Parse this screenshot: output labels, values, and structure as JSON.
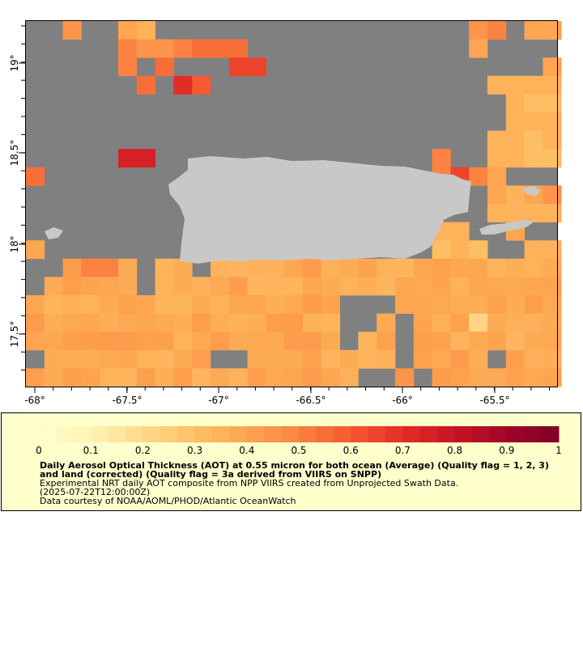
{
  "map": {
    "x_ticks": [
      "-68°",
      "-67.5°",
      "-67°",
      "-66.5°",
      "-66°",
      "-65.5°"
    ],
    "y_ticks": [
      "19°",
      "18.5°",
      "18°",
      "17.5°"
    ],
    "colors": {
      "ocean_no_data": "#808080",
      "land": "#c8c8c8",
      "frame": "#000000"
    },
    "grid_cells": "9 of 10 pixels approx",
    "notes_land": "Puerto Rico and neighbouring islands"
  },
  "legend": {
    "ticks": [
      "0",
      "0.1",
      "0.2",
      "0.3",
      "0.4",
      "0.5",
      "0.6",
      "0.7",
      "0.8",
      "0.9",
      "1"
    ],
    "title": "Daily Aerosol Optical Thickness (AOT) at 0.55 micron for both ocean (Average) (Quality flag = 1, 2, 3) and land (corrected) (Quality flag = 3a derived from VIIRS on SNPP)",
    "line1": "Experimental NRT daily AOT composite from NPP VIIRS created from Unprojected Swath Data.",
    "line2": "(2025-07-22T12:00:00Z)",
    "line3": "Data courtesy of NOAA/AOML/PHOD/Atlantic OceanWatch",
    "background": "#ffffcc"
  }
}
